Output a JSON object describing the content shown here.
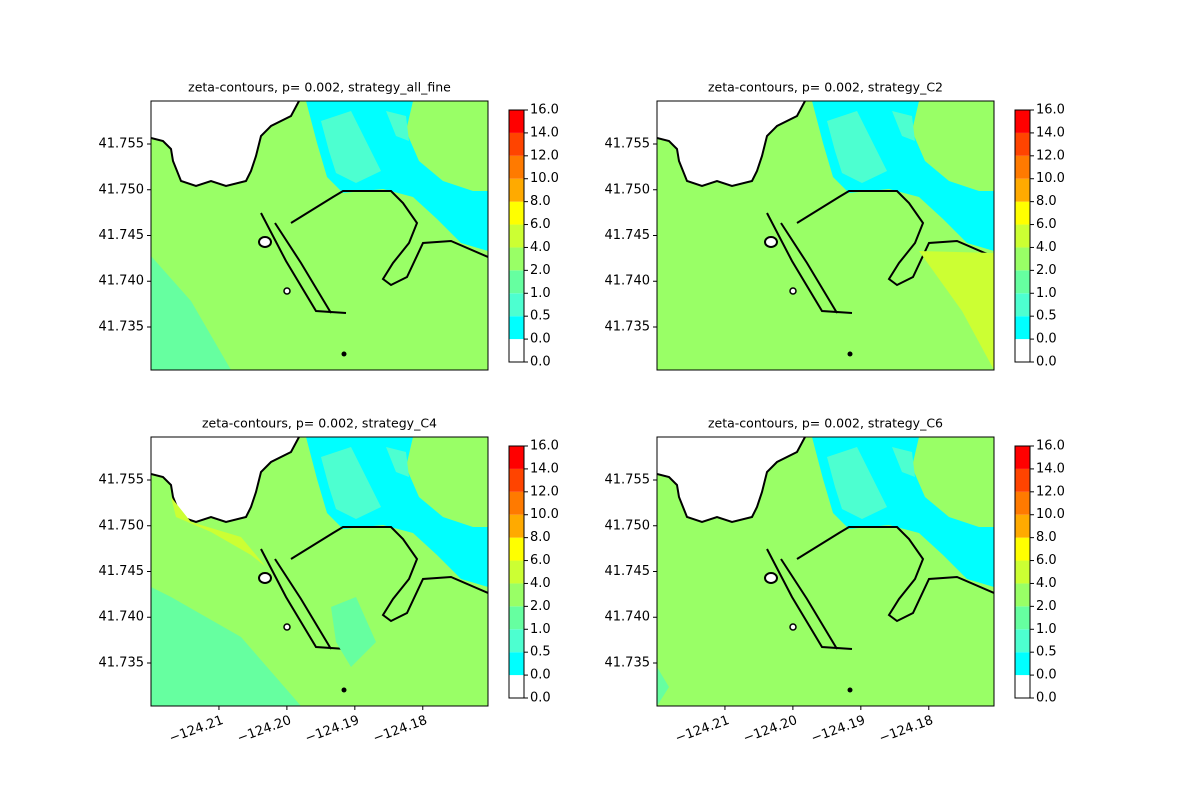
{
  "chart_data": [
    {
      "type": "contourf",
      "title": "zeta-contours, p= 0.002, strategy_all_fine",
      "xlim": [
        -124.22,
        -124.1704
      ],
      "ylim": [
        41.7303,
        41.7597
      ],
      "yticks": [
        41.735,
        {
          "value": 41.74,
          "label": "41.740"
        },
        41.745,
        {
          "value": 41.75,
          "label": "41.750"
        },
        41.755
      ],
      "levels": [
        {
          "value": 0,
          "label": "0.0"
        },
        {
          "value": 0,
          "label": "0.0"
        },
        {
          "value": 0.5,
          "label": "0.5"
        },
        {
          "value": 1,
          "label": "1.0"
        },
        {
          "value": 2,
          "label": "2.0"
        },
        {
          "value": 4,
          "label": "4.0"
        },
        {
          "value": 6,
          "label": "6.0"
        },
        {
          "value": 8,
          "label": "8.0"
        },
        {
          "value": 10,
          "label": "10.0"
        },
        {
          "value": 12,
          "label": "12.0"
        },
        {
          "value": 14,
          "label": "14.0"
        },
        {
          "value": 16,
          "label": "16.0"
        }
      ],
      "colors": [
        "#ffffff",
        "#00ffff",
        "#4dffd0",
        "#66ffa0",
        "#99ff66",
        "#ccff33",
        "#ffff00",
        "#ffaa00",
        "#ff7a00",
        "#ff4400",
        "#ff0000"
      ]
    },
    {
      "type": "contourf",
      "title": "zeta-contours, p= 0.002, strategy_C2",
      "xlim": [
        -124.22,
        -124.1704
      ],
      "ylim": [
        41.7303,
        41.7597
      ],
      "yticks": [
        41.735,
        {
          "value": 41.74,
          "label": "41.740"
        },
        41.745,
        {
          "value": 41.75,
          "label": "41.750"
        },
        41.755
      ],
      "levels": [
        {
          "value": 0,
          "label": "0.0"
        },
        {
          "value": 0,
          "label": "0.0"
        },
        {
          "value": 0.5,
          "label": "0.5"
        },
        {
          "value": 1,
          "label": "1.0"
        },
        {
          "value": 2,
          "label": "2.0"
        },
        {
          "value": 4,
          "label": "4.0"
        },
        {
          "value": 6,
          "label": "6.0"
        },
        {
          "value": 8,
          "label": "8.0"
        },
        {
          "value": 10,
          "label": "10.0"
        },
        {
          "value": 12,
          "label": "12.0"
        },
        {
          "value": 14,
          "label": "14.0"
        },
        {
          "value": 16,
          "label": "16.0"
        }
      ],
      "colors": [
        "#ffffff",
        "#00ffff",
        "#4dffd0",
        "#66ffa0",
        "#99ff66",
        "#ccff33",
        "#ffff00",
        "#ffaa00",
        "#ff7a00",
        "#ff4400",
        "#ff0000"
      ]
    },
    {
      "type": "contourf",
      "title": "zeta-contours, p= 0.002, strategy_C4",
      "xlim": [
        -124.22,
        -124.1704
      ],
      "ylim": [
        41.7303,
        41.7597
      ],
      "xticks": [
        {
          "value": -124.21,
          "label": "−124.21"
        },
        {
          "value": -124.2,
          "label": "−124.20"
        },
        {
          "value": -124.19,
          "label": "−124.19"
        },
        {
          "value": -124.18,
          "label": "−124.18"
        }
      ],
      "yticks": [
        41.735,
        {
          "value": 41.74,
          "label": "41.740"
        },
        41.745,
        {
          "value": 41.75,
          "label": "41.750"
        },
        41.755
      ],
      "levels": [
        {
          "value": 0,
          "label": "0.0"
        },
        {
          "value": 0,
          "label": "0.0"
        },
        {
          "value": 0.5,
          "label": "0.5"
        },
        {
          "value": 1,
          "label": "1.0"
        },
        {
          "value": 2,
          "label": "2.0"
        },
        {
          "value": 4,
          "label": "4.0"
        },
        {
          "value": 6,
          "label": "6.0"
        },
        {
          "value": 8,
          "label": "8.0"
        },
        {
          "value": 10,
          "label": "10.0"
        },
        {
          "value": 12,
          "label": "12.0"
        },
        {
          "value": 14,
          "label": "14.0"
        },
        {
          "value": 16,
          "label": "16.0"
        }
      ],
      "colors": [
        "#ffffff",
        "#00ffff",
        "#4dffd0",
        "#66ffa0",
        "#99ff66",
        "#ccff33",
        "#ffff00",
        "#ffaa00",
        "#ff7a00",
        "#ff4400",
        "#ff0000"
      ]
    },
    {
      "type": "contourf",
      "title": "zeta-contours, p= 0.002, strategy_C6",
      "xlim": [
        -124.22,
        -124.1704
      ],
      "ylim": [
        41.7303,
        41.7597
      ],
      "xticks": [
        {
          "value": -124.21,
          "label": "−124.21"
        },
        {
          "value": -124.2,
          "label": "−124.20"
        },
        {
          "value": -124.19,
          "label": "−124.19"
        },
        {
          "value": -124.18,
          "label": "−124.18"
        }
      ],
      "yticks": [
        41.735,
        {
          "value": 41.74,
          "label": "41.740"
        },
        41.745,
        {
          "value": 41.75,
          "label": "41.750"
        },
        41.755
      ],
      "levels": [
        {
          "value": 0,
          "label": "0.0"
        },
        {
          "value": 0,
          "label": "0.0"
        },
        {
          "value": 0.5,
          "label": "0.5"
        },
        {
          "value": 1,
          "label": "1.0"
        },
        {
          "value": 2,
          "label": "2.0"
        },
        {
          "value": 4,
          "label": "4.0"
        },
        {
          "value": 6,
          "label": "6.0"
        },
        {
          "value": 8,
          "label": "8.0"
        },
        {
          "value": 10,
          "label": "10.0"
        },
        {
          "value": 12,
          "label": "12.0"
        },
        {
          "value": 14,
          "label": "14.0"
        },
        {
          "value": 16,
          "label": "16.0"
        }
      ],
      "colors": [
        "#ffffff",
        "#00ffff",
        "#4dffd0",
        "#66ffa0",
        "#99ff66",
        "#ccff33",
        "#ffff00",
        "#ffaa00",
        "#ff7a00",
        "#ff4400",
        "#ff0000"
      ]
    }
  ]
}
